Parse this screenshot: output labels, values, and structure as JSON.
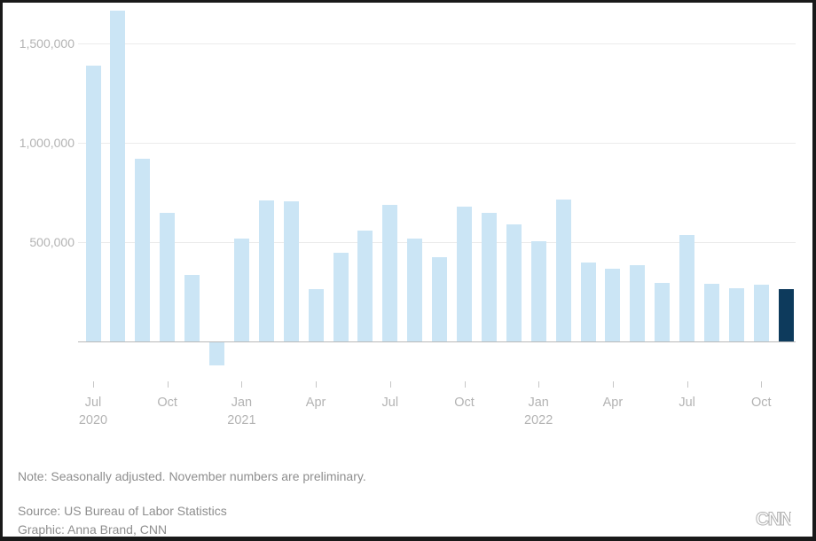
{
  "footer": {
    "note": "Note: Seasonally adjusted. November numbers are preliminary.",
    "source": "Source: US Bureau of Labor Statistics",
    "credit": "Graphic: Anna Brand, CNN",
    "logo": "CNN"
  },
  "chart_data": {
    "type": "bar",
    "title": "",
    "xlabel": "",
    "ylabel": "",
    "x": [
      "Jul 2020",
      "Aug 2020",
      "Sep 2020",
      "Oct 2020",
      "Nov 2020",
      "Dec 2020",
      "Jan 2021",
      "Feb 2021",
      "Mar 2021",
      "Apr 2021",
      "May 2021",
      "Jun 2021",
      "Jul 2021",
      "Aug 2021",
      "Sep 2021",
      "Oct 2021",
      "Nov 2021",
      "Dec 2021",
      "Jan 2022",
      "Feb 2022",
      "Mar 2022",
      "Apr 2022",
      "May 2022",
      "Jun 2022",
      "Jul 2022",
      "Aug 2022",
      "Sep 2022",
      "Oct 2022",
      "Nov 2022"
    ],
    "values": [
      1388000,
      1665000,
      919000,
      647000,
      333000,
      -115000,
      520000,
      710000,
      704000,
      263000,
      447000,
      557000,
      689000,
      517000,
      424000,
      677000,
      647000,
      588000,
      504000,
      714000,
      398000,
      368000,
      386000,
      293000,
      537000,
      292000,
      269000,
      284000,
      263000
    ],
    "highlight_index": 28,
    "ylim": [
      -200000,
      1700000
    ],
    "grid": true,
    "legend_position": "none",
    "y_ticks": [
      {
        "value": 500000,
        "label": "500,000"
      },
      {
        "value": 1000000,
        "label": "1,000,000"
      },
      {
        "value": 1500000,
        "label": "1,500,000"
      }
    ],
    "x_ticks": [
      {
        "index": 0,
        "label": "Jul",
        "sublabel": "2020"
      },
      {
        "index": 3,
        "label": "Oct",
        "sublabel": ""
      },
      {
        "index": 6,
        "label": "Jan",
        "sublabel": "2021"
      },
      {
        "index": 9,
        "label": "Apr",
        "sublabel": ""
      },
      {
        "index": 12,
        "label": "Jul",
        "sublabel": ""
      },
      {
        "index": 15,
        "label": "Oct",
        "sublabel": ""
      },
      {
        "index": 18,
        "label": "Jan",
        "sublabel": "2022"
      },
      {
        "index": 21,
        "label": "Apr",
        "sublabel": ""
      },
      {
        "index": 24,
        "label": "Jul",
        "sublabel": ""
      },
      {
        "index": 27,
        "label": "Oct",
        "sublabel": ""
      }
    ],
    "colors": {
      "bar": "#cbe5f5",
      "highlight": "#0d3a5c",
      "gridline": "#ebebeb",
      "axis_line": "#b9b9b9",
      "tick_mark": "#c6c6c6",
      "axis_label": "#b3b3b3",
      "footer_text": "#8e8e8e",
      "logo": "#b0b0b0",
      "frame": "#191919"
    }
  }
}
